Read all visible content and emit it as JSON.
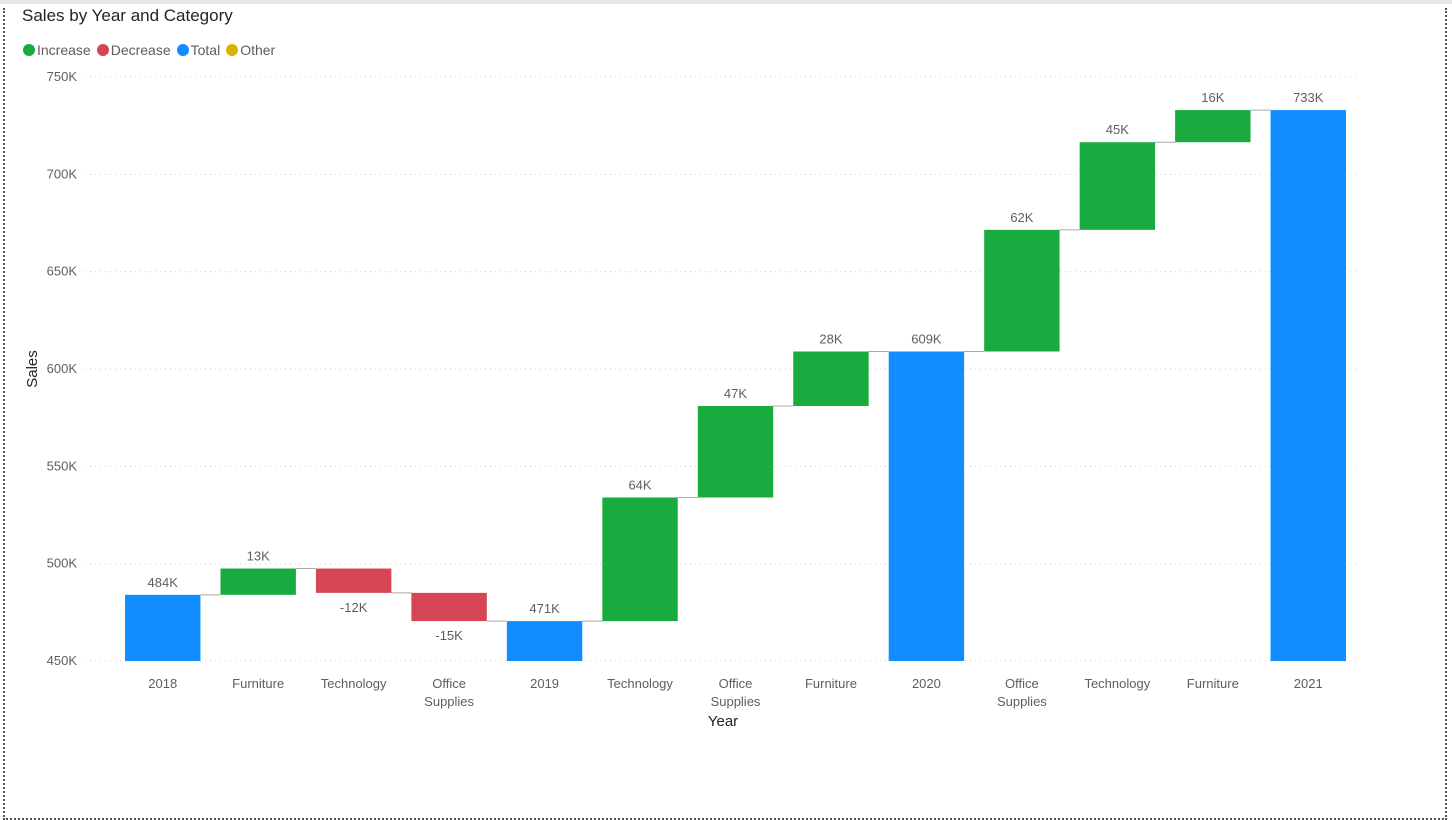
{
  "chart_data": {
    "type": "waterfall",
    "title": "Sales by Year and Category",
    "xlabel": "Year",
    "ylabel": "Sales",
    "ylim": [
      450000,
      750000
    ],
    "y_ticks": [
      "450K",
      "500K",
      "550K",
      "600K",
      "650K",
      "700K",
      "750K"
    ],
    "y_tick_values": [
      450000,
      500000,
      550000,
      600000,
      650000,
      700000,
      750000
    ],
    "grid": true,
    "legend": {
      "placement": "top-left",
      "entries": [
        {
          "name": "Increase",
          "color": "#1aab40"
        },
        {
          "name": "Decrease",
          "color": "#d64554"
        },
        {
          "name": "Total",
          "color": "#118dff"
        },
        {
          "name": "Other",
          "color": "#d9b300"
        }
      ]
    },
    "bars": [
      {
        "category": [
          "2018"
        ],
        "kind": "total",
        "start": 450000,
        "end": 484000,
        "label": "484K"
      },
      {
        "category": [
          "Furniture"
        ],
        "kind": "increase",
        "start": 484000,
        "end": 497500,
        "label": "13K"
      },
      {
        "category": [
          "Technology"
        ],
        "kind": "decrease",
        "start": 497500,
        "end": 485000,
        "label": "-12K"
      },
      {
        "category": [
          "Office",
          "Supplies"
        ],
        "kind": "decrease",
        "start": 485000,
        "end": 470500,
        "label": "-15K"
      },
      {
        "category": [
          "2019"
        ],
        "kind": "total",
        "start": 450000,
        "end": 470500,
        "label": "471K"
      },
      {
        "category": [
          "Technology"
        ],
        "kind": "increase",
        "start": 470500,
        "end": 534000,
        "label": "64K"
      },
      {
        "category": [
          "Office",
          "Supplies"
        ],
        "kind": "increase",
        "start": 534000,
        "end": 581000,
        "label": "47K"
      },
      {
        "category": [
          "Furniture"
        ],
        "kind": "increase",
        "start": 581000,
        "end": 609000,
        "label": "28K"
      },
      {
        "category": [
          "2020"
        ],
        "kind": "total",
        "start": 450000,
        "end": 609000,
        "label": "609K"
      },
      {
        "category": [
          "Office",
          "Supplies"
        ],
        "kind": "increase",
        "start": 609000,
        "end": 671500,
        "label": "62K"
      },
      {
        "category": [
          "Technology"
        ],
        "kind": "increase",
        "start": 671500,
        "end": 716500,
        "label": "45K"
      },
      {
        "category": [
          "Furniture"
        ],
        "kind": "increase",
        "start": 716500,
        "end": 733000,
        "label": "16K"
      },
      {
        "category": [
          "2021"
        ],
        "kind": "total",
        "start": 450000,
        "end": 733000,
        "label": "733K"
      }
    ]
  }
}
